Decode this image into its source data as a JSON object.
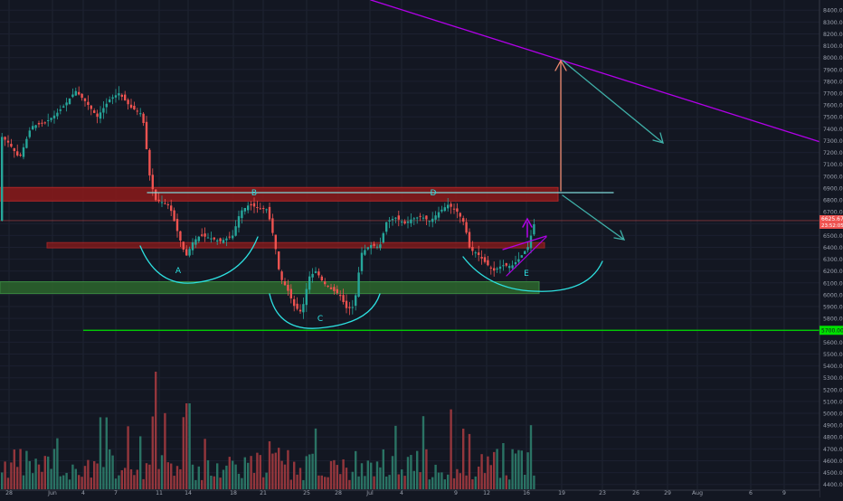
{
  "chart_data": {
    "type": "candlestick",
    "title": "",
    "price_axis": {
      "labels": [
        "8400.00",
        "8300.00",
        "8200.00",
        "8100.00",
        "8000.00",
        "7900.00",
        "7800.00",
        "7700.00",
        "7600.00",
        "7500.00",
        "7400.00",
        "7300.00",
        "7200.00",
        "7100.00",
        "7000.00",
        "6900.00",
        "6800.00",
        "6700.00",
        "6600.00",
        "6500.00",
        "6400.00",
        "6300.00",
        "6200.00",
        "6100.00",
        "6000.00",
        "5900.00",
        "5800.00",
        "5700.00",
        "5600.00",
        "5500.00",
        "5400.00",
        "5300.00",
        "5200.00",
        "5100.00",
        "5000.00",
        "4900.00",
        "4800.00",
        "4700.00",
        "4600.00",
        "4500.00",
        "4400.00"
      ],
      "ylim": [
        4390,
        8440
      ],
      "current_price_label": "6625.67",
      "countdown_label": "23:52:05",
      "support_price_label": "5700.00"
    },
    "time_axis": {
      "labels": [
        "28",
        "Jun",
        "4",
        "7",
        "11",
        "14",
        "18",
        "21",
        "25",
        "28",
        "Jul",
        "4",
        "9",
        "12",
        "16",
        "19",
        "23",
        "26",
        "29",
        "Aug",
        "6",
        "9"
      ]
    },
    "annotations": {
      "pattern_labels": [
        "A",
        "B",
        "C",
        "D",
        "E"
      ]
    },
    "levels": {
      "neckline": 6815,
      "resistance_zone": [
        6790,
        6905
      ],
      "mid_zone": [
        6395,
        6440
      ],
      "support_zone": [
        6010,
        6110
      ],
      "long_support": 5700,
      "current": 6625
    },
    "ohlc_close_path": [
      {
        "date": "May 26",
        "close": 7350
      },
      {
        "date": "May 28",
        "close": 7150
      },
      {
        "date": "May 30",
        "close": 7450
      },
      {
        "date": "Jun 1",
        "close": 7500
      },
      {
        "date": "Jun 3",
        "close": 7700
      },
      {
        "date": "Jun 5",
        "close": 7600
      },
      {
        "date": "Jun 7",
        "close": 7650
      },
      {
        "date": "Jun 9",
        "close": 7600
      },
      {
        "date": "Jun 10",
        "close": 6850
      },
      {
        "date": "Jun 12",
        "close": 6800
      },
      {
        "date": "Jun 13",
        "close": 6300
      },
      {
        "date": "Jun 15",
        "close": 6500
      },
      {
        "date": "Jun 17",
        "close": 6500
      },
      {
        "date": "Jun 19",
        "close": 6700
      },
      {
        "date": "Jun 21",
        "close": 6750
      },
      {
        "date": "Jun 22",
        "close": 6100
      },
      {
        "date": "Jun 24",
        "close": 5850
      },
      {
        "date": "Jun 25",
        "close": 6200
      },
      {
        "date": "Jun 27",
        "close": 6100
      },
      {
        "date": "Jun 29",
        "close": 5900
      },
      {
        "date": "Jun 30",
        "close": 6400
      },
      {
        "date": "Jul 2",
        "close": 6600
      },
      {
        "date": "Jul 4",
        "close": 6550
      },
      {
        "date": "Jul 6",
        "close": 6650
      },
      {
        "date": "Jul 8",
        "close": 6750
      },
      {
        "date": "Jul 10",
        "close": 6400
      },
      {
        "date": "Jul 12",
        "close": 6250
      },
      {
        "date": "Jul 14",
        "close": 6250
      },
      {
        "date": "Jul 16",
        "close": 6625
      }
    ],
    "volume_axis_note": "volume bars in lower pane, green = up day, red = down day"
  }
}
